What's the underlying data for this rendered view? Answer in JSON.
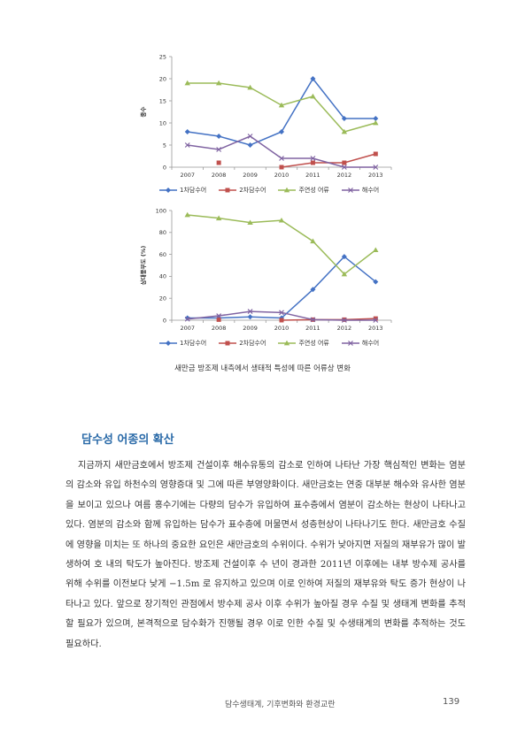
{
  "chart_data": [
    {
      "type": "line",
      "title": "",
      "xlabel": "",
      "ylabel": "종수",
      "categories": [
        "2007",
        "2008",
        "2009",
        "2010",
        "2011",
        "2012",
        "2013"
      ],
      "ylim": [
        0,
        25
      ],
      "yticks": [
        0,
        5,
        10,
        15,
        20,
        25
      ],
      "series": [
        {
          "name": "1차담수어",
          "color": "#4472c4",
          "marker": "diamond",
          "values": [
            8,
            7,
            5,
            8,
            20,
            11,
            11
          ]
        },
        {
          "name": "2차담수어",
          "color": "#c0504d",
          "marker": "square",
          "values": [
            null,
            1,
            null,
            0,
            1,
            1,
            3
          ]
        },
        {
          "name": "주연성 어류",
          "color": "#9bbb59",
          "marker": "triangle",
          "values": [
            19,
            19,
            18,
            14,
            16,
            8,
            10
          ]
        },
        {
          "name": "해수어",
          "color": "#8064a2",
          "marker": "x",
          "values": [
            5,
            4,
            7,
            2,
            2,
            0,
            0
          ]
        }
      ],
      "legend_position": "bottom"
    },
    {
      "type": "line",
      "title": "",
      "xlabel": "",
      "ylabel": "상대풍부도 (%)",
      "categories": [
        "2007",
        "2008",
        "2009",
        "2010",
        "2011",
        "2012",
        "2013"
      ],
      "ylim": [
        0,
        100
      ],
      "yticks": [
        0,
        20,
        40,
        60,
        80,
        100
      ],
      "series": [
        {
          "name": "1차담수어",
          "color": "#4472c4",
          "marker": "diamond",
          "values": [
            2,
            2,
            3,
            2,
            28,
            58,
            35
          ]
        },
        {
          "name": "2차담수어",
          "color": "#c0504d",
          "marker": "square",
          "values": [
            null,
            0.5,
            null,
            0,
            0.5,
            0.5,
            1.5
          ]
        },
        {
          "name": "주연성 어류",
          "color": "#9bbb59",
          "marker": "triangle",
          "values": [
            96,
            93,
            89,
            91,
            72,
            42,
            64
          ]
        },
        {
          "name": "해수어",
          "color": "#8064a2",
          "marker": "x",
          "values": [
            1,
            4,
            8,
            7,
            0.5,
            0,
            0
          ]
        }
      ],
      "legend_position": "bottom"
    }
  ],
  "caption": "새만금 방조제 내측에서 생태적 특성에 따른 어류상 변화",
  "section_heading": "담수성 어종의 확산",
  "paragraph": "지금까지 새만금호에서 방조제 건설이후 해수유통의 감소로 인하여 나타난 가장 핵심적인 변화는 염분의 감소와 유입 하천수의 영향증대 및 그에 따른 부영양화이다. 새만금호는 연중 대부분 해수와 유사한 염분을 보이고 있으나 여름 홍수기에는 다량의 담수가 유입하여 표수층에서 염분이 감소하는 현상이 나타나고 있다. 염분의 감소와 함께 유입하는 담수가 표수층에 머물면서 성층현상이 나타나기도 한다. 새만금호 수질에 영향을 미치는 또 하나의 중요한 요인은 새만금호의 수위이다. 수위가 낮아지면 저질의 재부유가 많이 발생하여 호 내의 탁도가 높아진다. 방조제 건설이후 수 년이 경과한 2011년 이후에는 내부 방수제 공사를 위해 수위를 이전보다 낮게 −1.5m 로 유지하고 있으며 이로 인하여 저질의 재부유와 탁도 증가 현상이 나타나고 있다. 앞으로 장기적인 관점에서 방수제 공사 이후 수위가 높아질 경우 수질 및 생태계 변화를 추적할 필요가 있으며, 본격적으로 담수화가 진행될 경우 이로 인한 수질 및 수생태계의 변화를 추적하는 것도 필요하다.",
  "footer": {
    "title": "담수생태계, 기후변화와 환경교란",
    "page": "139"
  }
}
